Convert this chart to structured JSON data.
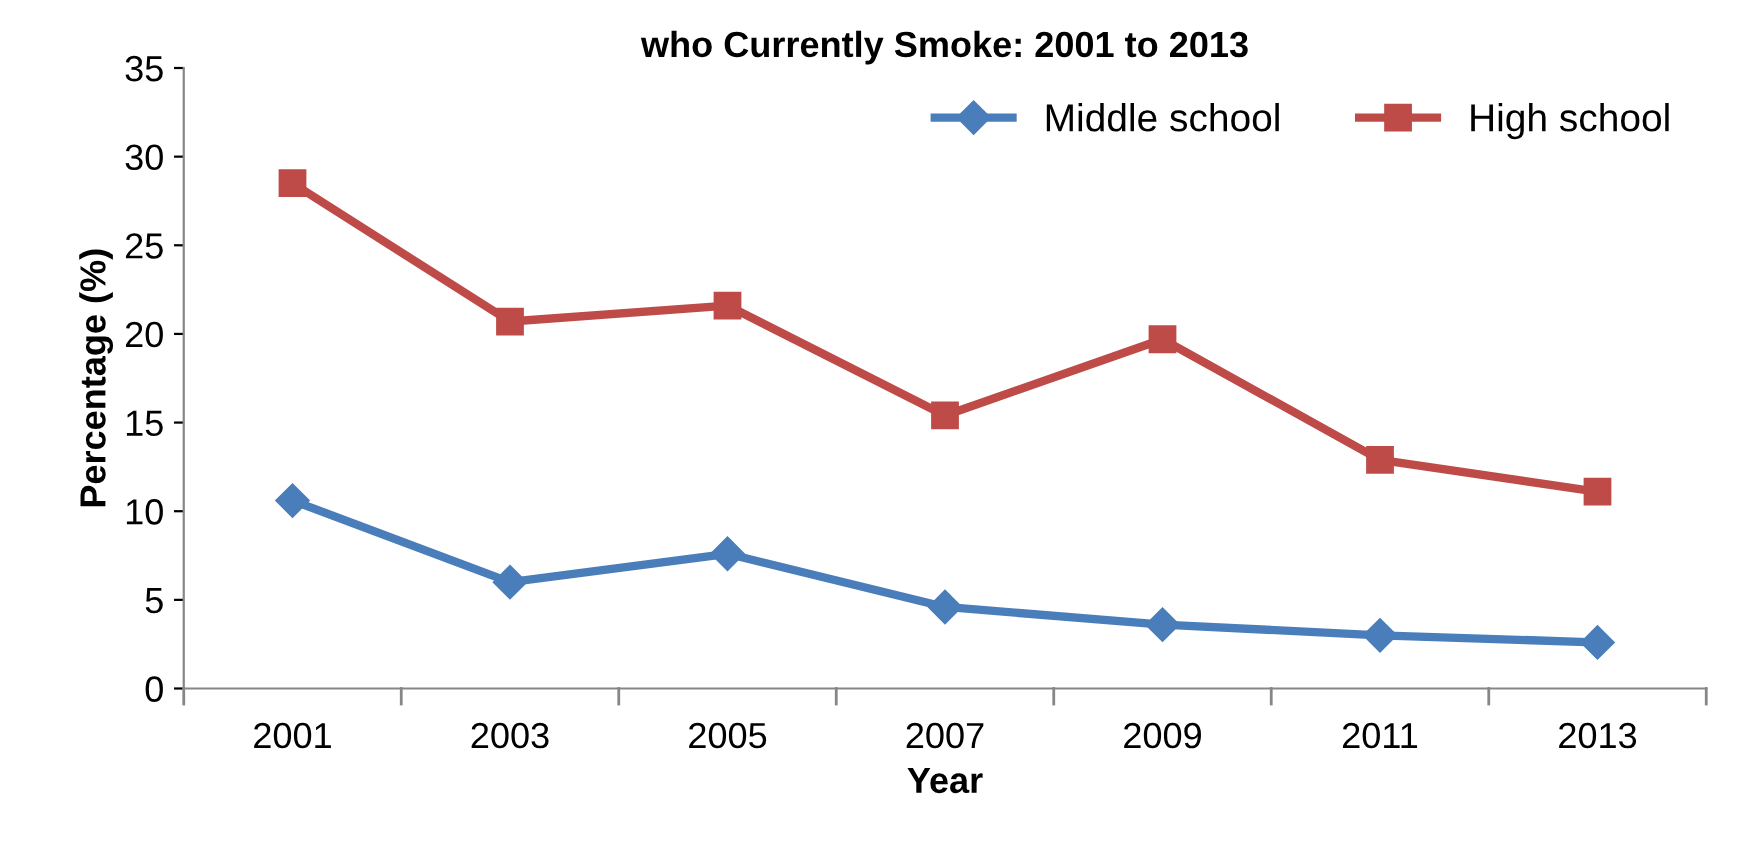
{
  "chart_data": {
    "type": "line",
    "title": "who Currently Smoke: 2001 to 2013",
    "xlabel": "Year",
    "ylabel": "Percentage (%)",
    "categories": [
      "2001",
      "2003",
      "2005",
      "2007",
      "2009",
      "2011",
      "2013"
    ],
    "series": [
      {
        "name": "Middle school",
        "color": "#4a7ebb",
        "marker": "diamond",
        "values": [
          10.6,
          6.0,
          7.6,
          4.6,
          3.6,
          3.0,
          2.6
        ]
      },
      {
        "name": "High school",
        "color": "#be4b48",
        "marker": "square",
        "values": [
          28.5,
          20.7,
          21.6,
          15.4,
          19.7,
          12.9,
          11.1
        ]
      }
    ],
    "ylim": [
      0,
      35
    ],
    "yticks": [
      0,
      5,
      10,
      15,
      20,
      25,
      30,
      35
    ],
    "grid": false,
    "legend": "top right",
    "line_style": "solid"
  }
}
